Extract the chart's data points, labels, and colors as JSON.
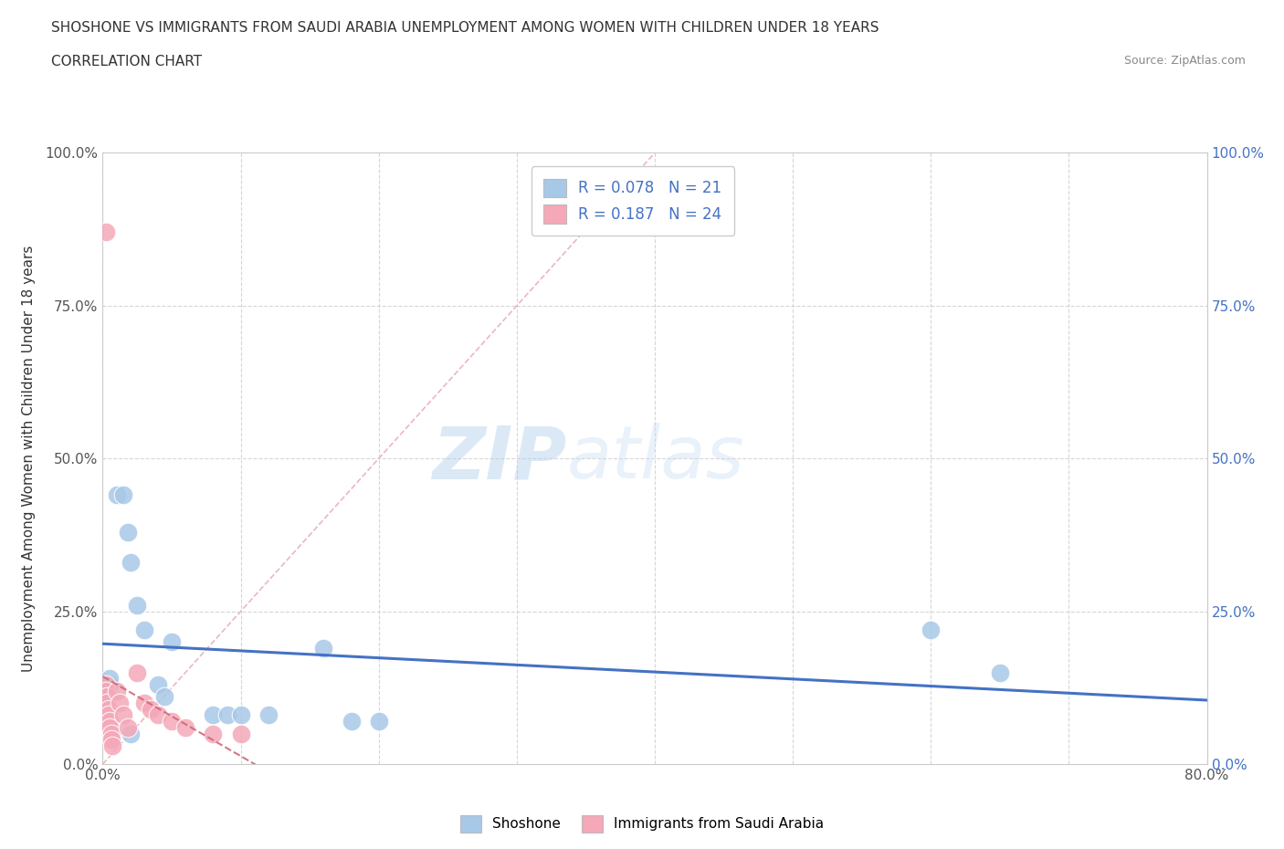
{
  "title_line1": "SHOSHONE VS IMMIGRANTS FROM SAUDI ARABIA UNEMPLOYMENT AMONG WOMEN WITH CHILDREN UNDER 18 YEARS",
  "title_line2": "CORRELATION CHART",
  "source": "Source: ZipAtlas.com",
  "ylabel": "Unemployment Among Women with Children Under 18 years",
  "xlim": [
    0.0,
    80.0
  ],
  "ylim": [
    0.0,
    100.0
  ],
  "xticks": [
    0.0,
    10.0,
    20.0,
    30.0,
    40.0,
    50.0,
    60.0,
    70.0,
    80.0
  ],
  "xticklabels": [
    "0.0%",
    "",
    "",
    "",
    "",
    "",
    "",
    "",
    "80.0%"
  ],
  "yticks": [
    0.0,
    25.0,
    50.0,
    75.0,
    100.0
  ],
  "yticklabels": [
    "0.0%",
    "25.0%",
    "50.0%",
    "75.0%",
    "100.0%"
  ],
  "shoshone_R": 0.078,
  "shoshone_N": 21,
  "saudi_R": 0.187,
  "saudi_N": 24,
  "shoshone_color": "#a8c8e8",
  "saudi_color": "#f4a8b8",
  "shoshone_line_color": "#4472c4",
  "saudi_line_color": "#d06878",
  "diagonal_color": "#e8b0b8",
  "watermark_zip": "ZIP",
  "watermark_atlas": "atlas",
  "shoshone_points": [
    [
      0.5,
      13.0
    ],
    [
      0.5,
      14.0
    ],
    [
      1.0,
      44.0
    ],
    [
      1.5,
      44.0
    ],
    [
      1.8,
      38.0
    ],
    [
      2.0,
      33.0
    ],
    [
      2.5,
      26.0
    ],
    [
      3.0,
      22.0
    ],
    [
      4.0,
      13.0
    ],
    [
      4.5,
      11.0
    ],
    [
      5.0,
      20.0
    ],
    [
      8.0,
      8.0
    ],
    [
      9.0,
      8.0
    ],
    [
      10.0,
      8.0
    ],
    [
      12.0,
      8.0
    ],
    [
      16.0,
      19.0
    ],
    [
      18.0,
      7.0
    ],
    [
      20.0,
      7.0
    ],
    [
      60.0,
      22.0
    ],
    [
      65.0,
      15.0
    ],
    [
      2.0,
      5.0
    ]
  ],
  "saudi_points": [
    [
      0.2,
      87.0
    ],
    [
      0.2,
      13.0
    ],
    [
      0.2,
      12.0
    ],
    [
      0.3,
      11.0
    ],
    [
      0.3,
      10.0
    ],
    [
      0.4,
      9.0
    ],
    [
      0.4,
      8.0
    ],
    [
      0.5,
      7.0
    ],
    [
      0.5,
      6.0
    ],
    [
      0.6,
      5.0
    ],
    [
      0.6,
      4.0
    ],
    [
      0.7,
      3.0
    ],
    [
      1.0,
      12.0
    ],
    [
      1.2,
      10.0
    ],
    [
      1.5,
      8.0
    ],
    [
      1.8,
      6.0
    ],
    [
      2.5,
      15.0
    ],
    [
      3.0,
      10.0
    ],
    [
      3.5,
      9.0
    ],
    [
      4.0,
      8.0
    ],
    [
      5.0,
      7.0
    ],
    [
      6.0,
      6.0
    ],
    [
      8.0,
      5.0
    ],
    [
      10.0,
      5.0
    ]
  ]
}
